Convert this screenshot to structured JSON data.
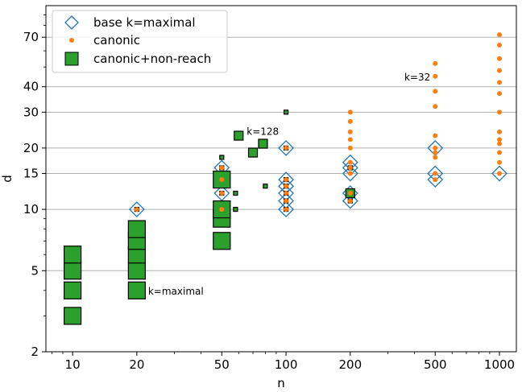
{
  "chart_data": {
    "type": "scatter",
    "title": "",
    "xlabel": "n",
    "ylabel": "d",
    "x_scale": "log",
    "y_scale": "log",
    "xlim": [
      7.5,
      1200
    ],
    "ylim": [
      2,
      100
    ],
    "grid": "horizontal",
    "legend_position": "top-left",
    "x_ticks": [
      10,
      20,
      50,
      100,
      200,
      500,
      1000
    ],
    "x_tick_labels": [
      "10",
      "20",
      "50",
      "100",
      "200",
      "500",
      "1000"
    ],
    "y_ticks": [
      2,
      5,
      10,
      15,
      20,
      30,
      40,
      70
    ],
    "y_tick_labels": [
      "2",
      "5",
      "10",
      "15",
      "20",
      "30",
      "40",
      "70"
    ],
    "colors": {
      "base": "#1f77b4",
      "canonic": "#ff7f0e",
      "nonreach": "#2ca02c",
      "grid": "#b0b0b0"
    },
    "series": [
      {
        "name": "base k=maximal",
        "marker": "diamond",
        "points": [
          [
            20,
            10
          ],
          [
            50,
            12
          ],
          [
            50,
            14
          ],
          [
            50,
            16
          ],
          [
            100,
            10
          ],
          [
            100,
            11
          ],
          [
            100,
            12
          ],
          [
            100,
            13
          ],
          [
            100,
            14
          ],
          [
            100,
            20
          ],
          [
            200,
            11
          ],
          [
            200,
            12
          ],
          [
            200,
            15
          ],
          [
            200,
            16
          ],
          [
            200,
            17
          ],
          [
            500,
            14
          ],
          [
            500,
            15
          ],
          [
            500,
            20
          ],
          [
            1000,
            15
          ]
        ]
      },
      {
        "name": "canonic",
        "marker": "circle",
        "points": [
          [
            20,
            10
          ],
          [
            50,
            10
          ],
          [
            50,
            12
          ],
          [
            50,
            14
          ],
          [
            50,
            16
          ],
          [
            100,
            10
          ],
          [
            100,
            11
          ],
          [
            100,
            12
          ],
          [
            100,
            13
          ],
          [
            100,
            14
          ],
          [
            100,
            20
          ],
          [
            200,
            11
          ],
          [
            200,
            12
          ],
          [
            200,
            15
          ],
          [
            200,
            16
          ],
          [
            200,
            17
          ],
          [
            200,
            20
          ],
          [
            200,
            22
          ],
          [
            200,
            24
          ],
          [
            200,
            27
          ],
          [
            200,
            30
          ],
          [
            500,
            14
          ],
          [
            500,
            15
          ],
          [
            500,
            18
          ],
          [
            500,
            19
          ],
          [
            500,
            20
          ],
          [
            500,
            23
          ],
          [
            500,
            32
          ],
          [
            500,
            38
          ],
          [
            500,
            45
          ],
          [
            500,
            52
          ],
          [
            1000,
            15
          ],
          [
            1000,
            17
          ],
          [
            1000,
            19
          ],
          [
            1000,
            21
          ],
          [
            1000,
            22
          ],
          [
            1000,
            24
          ],
          [
            1000,
            30
          ],
          [
            1000,
            37
          ],
          [
            1000,
            42
          ],
          [
            1000,
            48
          ],
          [
            1000,
            55
          ],
          [
            1000,
            64
          ],
          [
            1000,
            72
          ]
        ]
      },
      {
        "name": "canonic+non-reach",
        "marker": "square",
        "points": [
          {
            "x": 10,
            "y": 3,
            "size": "large"
          },
          {
            "x": 10,
            "y": 4,
            "size": "large"
          },
          {
            "x": 10,
            "y": 5,
            "size": "large"
          },
          {
            "x": 10,
            "y": 6,
            "size": "large"
          },
          {
            "x": 20,
            "y": 4,
            "size": "large"
          },
          {
            "x": 20,
            "y": 5,
            "size": "large"
          },
          {
            "x": 20,
            "y": 6,
            "size": "large"
          },
          {
            "x": 20,
            "y": 7,
            "size": "large"
          },
          {
            "x": 20,
            "y": 8,
            "size": "large"
          },
          {
            "x": 20,
            "y": 10,
            "size": "tiny"
          },
          {
            "x": 50,
            "y": 7,
            "size": "large"
          },
          {
            "x": 50,
            "y": 9,
            "size": "large"
          },
          {
            "x": 50,
            "y": 10,
            "size": "large"
          },
          {
            "x": 50,
            "y": 12,
            "size": "tiny"
          },
          {
            "x": 50,
            "y": 14,
            "size": "large"
          },
          {
            "x": 50,
            "y": 16,
            "size": "tiny"
          },
          {
            "x": 50,
            "y": 18,
            "size": "tiny"
          },
          {
            "x": 58,
            "y": 10,
            "size": "tiny"
          },
          {
            "x": 58,
            "y": 12,
            "size": "tiny"
          },
          {
            "x": 60,
            "y": 23,
            "size": "medium"
          },
          {
            "x": 70,
            "y": 19,
            "size": "medium"
          },
          {
            "x": 78,
            "y": 21,
            "size": "medium"
          },
          {
            "x": 80,
            "y": 13,
            "size": "tiny"
          },
          {
            "x": 100,
            "y": 10,
            "size": "tiny"
          },
          {
            "x": 100,
            "y": 11,
            "size": "tiny"
          },
          {
            "x": 100,
            "y": 12,
            "size": "tiny"
          },
          {
            "x": 100,
            "y": 13,
            "size": "tiny"
          },
          {
            "x": 100,
            "y": 14,
            "size": "tiny"
          },
          {
            "x": 100,
            "y": 20,
            "size": "tiny"
          },
          {
            "x": 100,
            "y": 30,
            "size": "tiny"
          },
          {
            "x": 200,
            "y": 11,
            "size": "tiny"
          },
          {
            "x": 200,
            "y": 12,
            "size": "medium"
          },
          {
            "x": 200,
            "y": 16,
            "size": "tiny"
          }
        ]
      }
    ],
    "annotations": [
      {
        "text": "k=maximal",
        "x": 20,
        "y": 4
      },
      {
        "text": "k=128",
        "x": 60,
        "y": 23
      },
      {
        "text": "k=32",
        "x": 500,
        "y": 45
      }
    ]
  }
}
